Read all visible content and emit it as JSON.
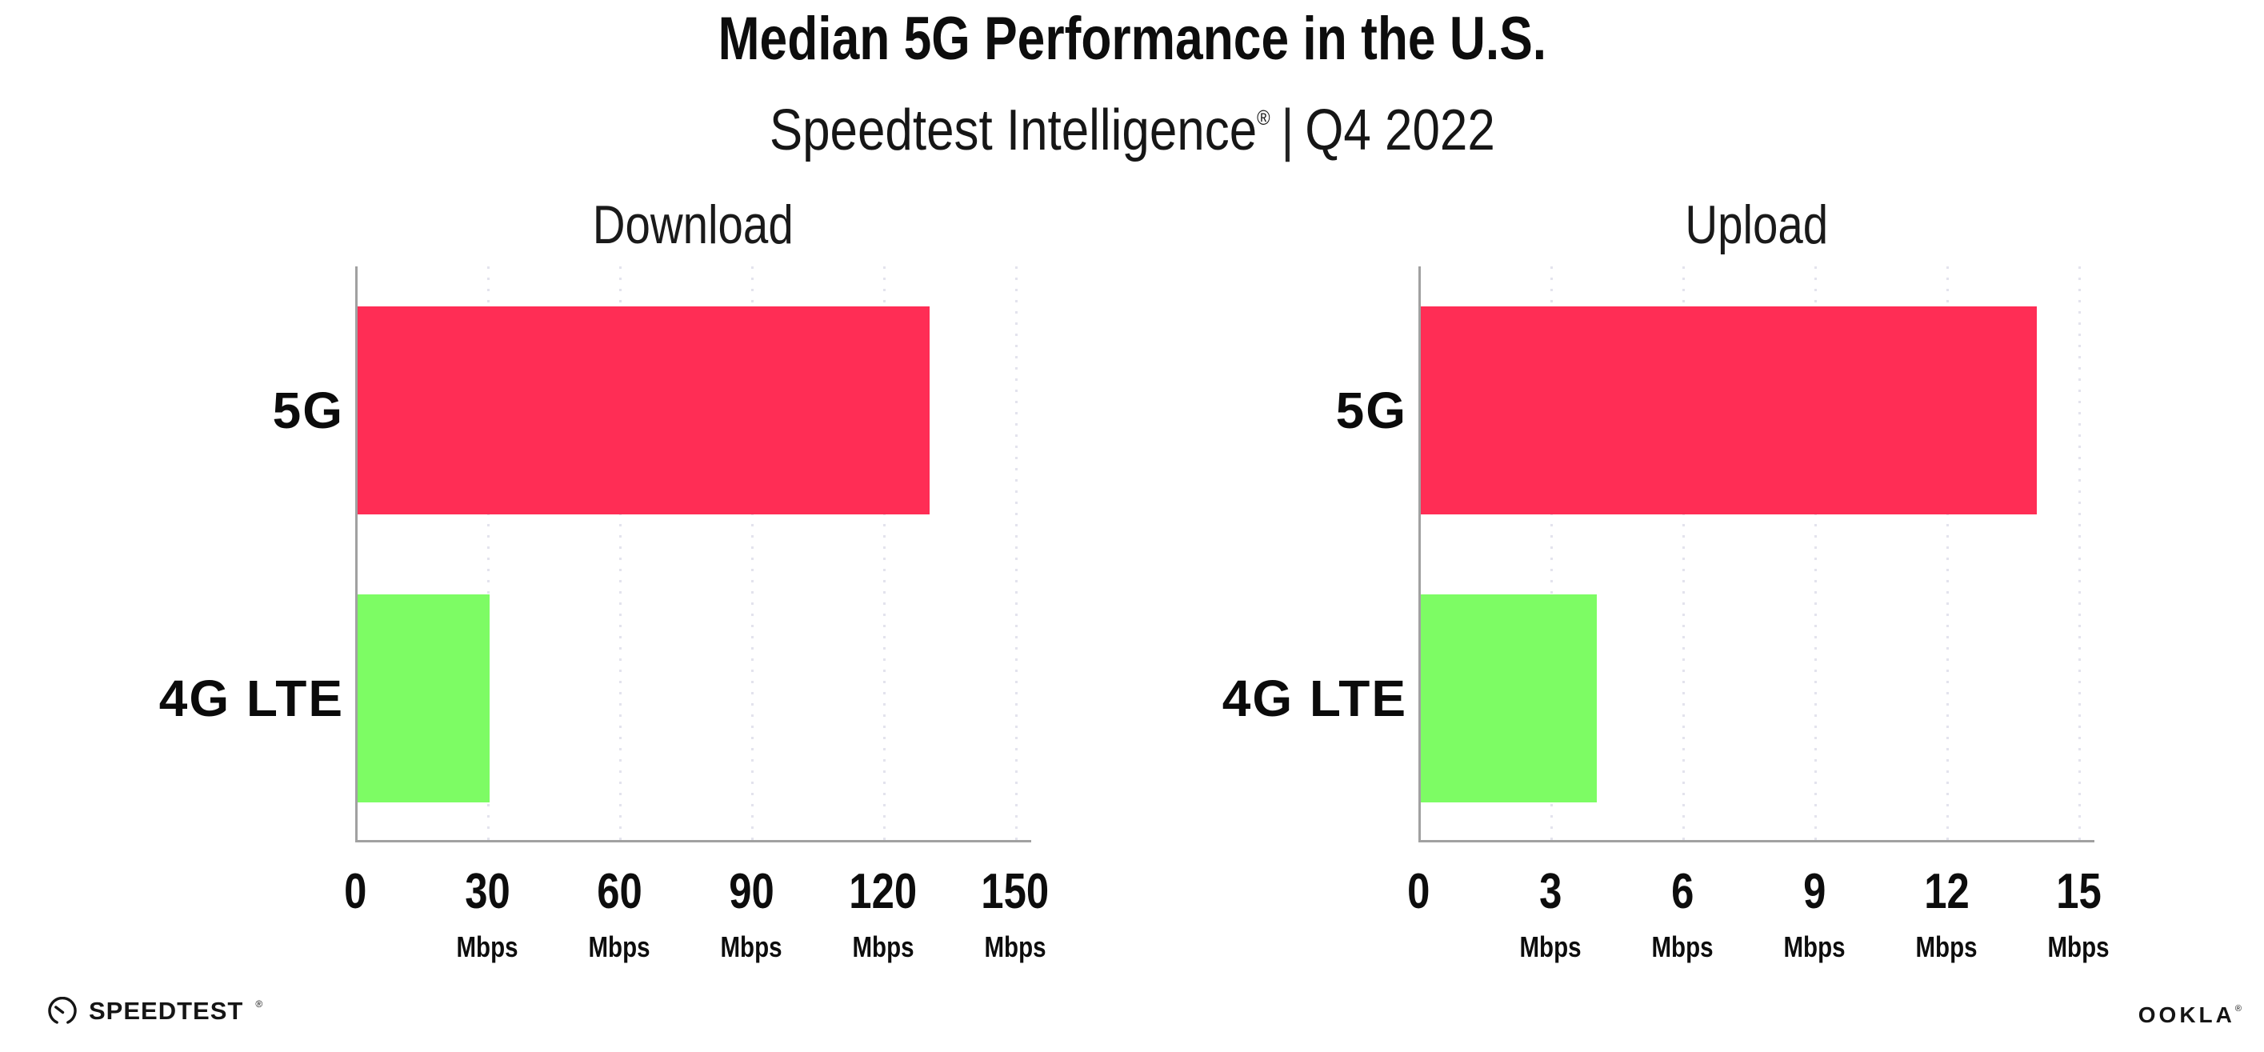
{
  "header": {
    "title": "Median 5G Performance in the U.S.",
    "subtitle_product": "Speedtest Intelligence",
    "subtitle_reg": "®",
    "subtitle_separator": "|",
    "subtitle_period": "Q4 2022"
  },
  "chart_data": [
    {
      "type": "bar",
      "orientation": "horizontal",
      "title": "Download",
      "categories": [
        "5G",
        "4G LTE"
      ],
      "values": [
        130,
        30
      ],
      "unit": "Mbps",
      "xlim": [
        0,
        150
      ],
      "xticks": [
        0,
        30,
        60,
        90,
        120,
        150
      ],
      "xtick_unit": "Mbps",
      "bar_colors": [
        "#FF2D55",
        "#7DFC64"
      ],
      "grid": "dotted-vertical",
      "legend": "none"
    },
    {
      "type": "bar",
      "orientation": "horizontal",
      "title": "Upload",
      "categories": [
        "5G",
        "4G LTE"
      ],
      "values": [
        14,
        4
      ],
      "unit": "Mbps",
      "xlim": [
        0,
        15
      ],
      "xticks": [
        0,
        3,
        6,
        9,
        12,
        15
      ],
      "xtick_unit": "Mbps",
      "bar_colors": [
        "#FF2D55",
        "#7DFC64"
      ],
      "grid": "dotted-vertical",
      "legend": "none"
    }
  ],
  "colors": {
    "bar_5g": "#FF2D55",
    "bar_4g_lte": "#7DFC64",
    "axis": "#A1A1A1",
    "gridline": "#E3E3ED",
    "text": "#0D0D0D"
  },
  "footer": {
    "speedtest_label": "SPEEDTEST",
    "speedtest_reg": "®",
    "ookla_label": "OOKLA",
    "ookla_reg": "®"
  }
}
